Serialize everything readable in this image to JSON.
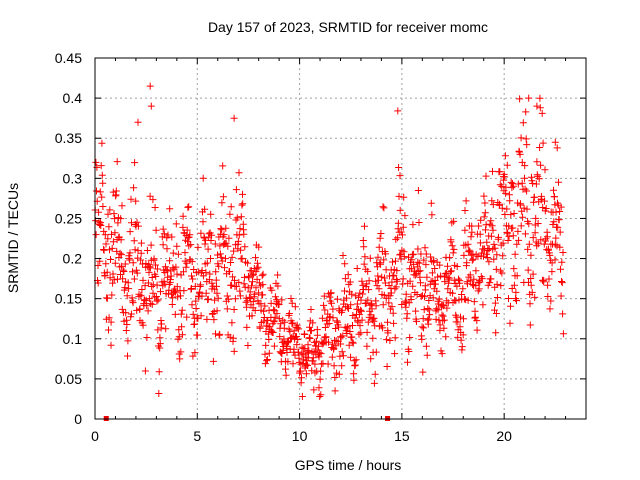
{
  "chart_data": {
    "type": "scatter",
    "title": "Day 157 of 2023, SRMTID for receiver momc",
    "xlabel": "GPS time / hours",
    "ylabel": "SRMTID / TECUs",
    "xlim": [
      0,
      24
    ],
    "ylim": [
      0,
      0.45
    ],
    "x_ticks": [
      0,
      5,
      10,
      15,
      20
    ],
    "x_tick_labels": [
      "0",
      "5",
      "10",
      "15",
      "20"
    ],
    "y_ticks": [
      0,
      0.05,
      0.1,
      0.15,
      0.2,
      0.25,
      0.3,
      0.35,
      0.4,
      0.45
    ],
    "y_tick_labels": [
      "0",
      "0.05",
      "0.1",
      "0.15",
      "0.2",
      "0.25",
      "0.3",
      "0.35",
      "0.4",
      "0.45"
    ],
    "grid": true,
    "marker": "plus",
    "series_color": "#ff0000",
    "marker_color": "#ee0000",
    "x_axis_markers": [
      0.55,
      14.3
    ],
    "points_per_hour": 60,
    "x_end": 22.9,
    "envelope": {
      "x": [
        0,
        1,
        2,
        3,
        4,
        5,
        6,
        7,
        8,
        9,
        10,
        11,
        12,
        13,
        14,
        15,
        16,
        17,
        18,
        19,
        20,
        21,
        22,
        22.9
      ],
      "mean": [
        0.24,
        0.2,
        0.19,
        0.16,
        0.17,
        0.16,
        0.19,
        0.2,
        0.15,
        0.12,
        0.08,
        0.09,
        0.12,
        0.14,
        0.16,
        0.19,
        0.16,
        0.15,
        0.16,
        0.2,
        0.24,
        0.25,
        0.25,
        0.19
      ],
      "spread": [
        0.07,
        0.07,
        0.07,
        0.07,
        0.06,
        0.06,
        0.07,
        0.07,
        0.05,
        0.04,
        0.03,
        0.04,
        0.05,
        0.05,
        0.06,
        0.07,
        0.06,
        0.05,
        0.06,
        0.07,
        0.08,
        0.09,
        0.09,
        0.07
      ]
    },
    "notable_points": [
      {
        "x": 2.7,
        "y": 0.415
      },
      {
        "x": 2.75,
        "y": 0.39
      },
      {
        "x": 2.1,
        "y": 0.37
      },
      {
        "x": 6.8,
        "y": 0.375
      },
      {
        "x": 14.8,
        "y": 0.384
      },
      {
        "x": 21.2,
        "y": 0.4
      },
      {
        "x": 21.6,
        "y": 0.39
      },
      {
        "x": 22.5,
        "y": 0.345
      }
    ]
  }
}
